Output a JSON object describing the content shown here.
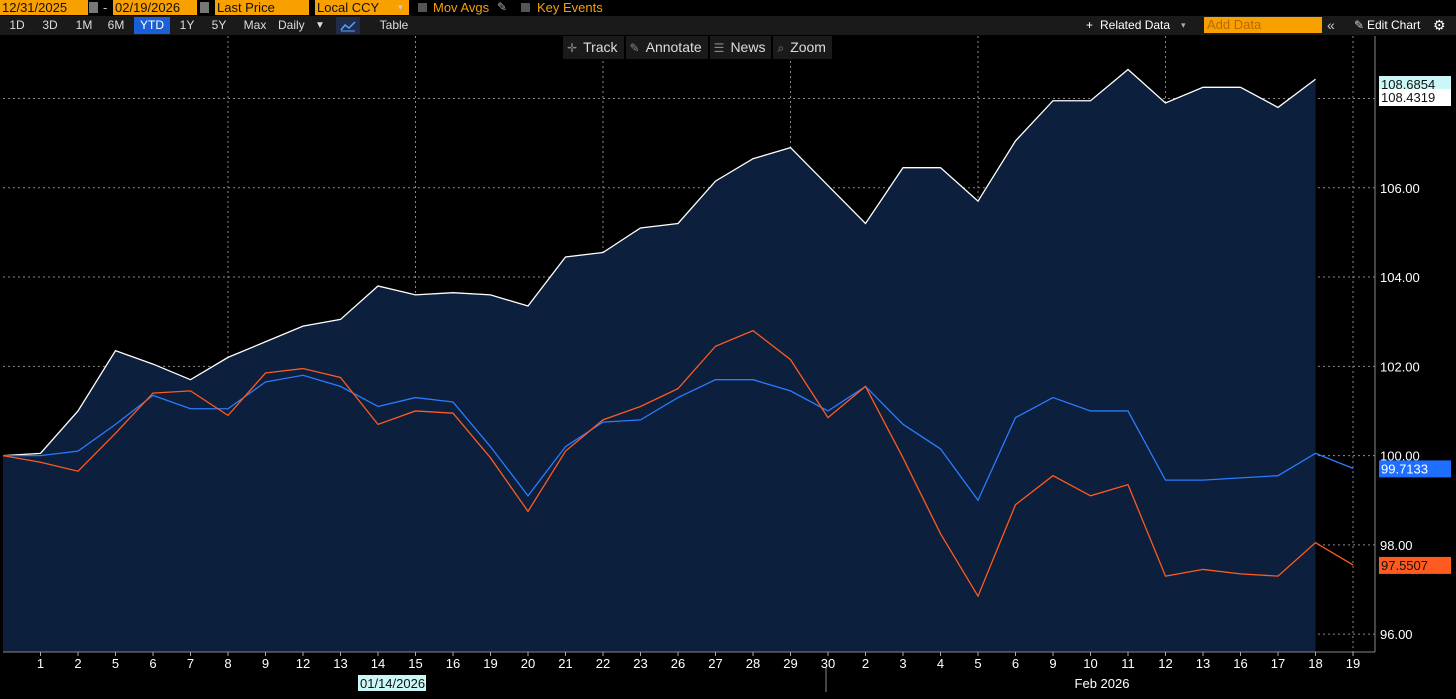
{
  "header": {
    "start_date": "12/31/2025",
    "end_date": "02/19/2026",
    "date_sep": "-",
    "field": "Last Price",
    "currency": "Local CCY",
    "mov_avgs": "Mov Avgs",
    "key_events": "Key Events"
  },
  "toolbar": {
    "periods": [
      "1D",
      "3D",
      "1M",
      "6M",
      "YTD",
      "1Y",
      "5Y",
      "Max"
    ],
    "active_period": "YTD",
    "frequency": "Daily",
    "table": "Table",
    "related_data": "Related Data",
    "add_data_placeholder": "Add Data",
    "edit_chart": "Edit Chart"
  },
  "chart_tools": {
    "track": "Track",
    "annotate": "Annotate",
    "news": "News",
    "zoom": "Zoom"
  },
  "colors": {
    "white_series": "#ffffff",
    "blue_series": "#2a7bff",
    "orange_series": "#ff5a1f",
    "area_fill": "#0c1f3c",
    "accent": "#f7a000"
  },
  "chart_data": {
    "type": "line",
    "x": [
      "1",
      "2",
      "5",
      "6",
      "7",
      "8",
      "9",
      "12",
      "13",
      "14",
      "15",
      "16",
      "19",
      "20",
      "21",
      "22",
      "23",
      "26",
      "27",
      "28",
      "29",
      "30",
      "2",
      "3",
      "4",
      "5",
      "6",
      "9",
      "10",
      "11",
      "12",
      "13",
      "16",
      "17",
      "18",
      "19"
    ],
    "dates": [
      "2026-01-01",
      "2026-01-02",
      "2026-01-05",
      "2026-01-06",
      "2026-01-07",
      "2026-01-08",
      "2026-01-09",
      "2026-01-12",
      "2026-01-13",
      "2026-01-14",
      "2026-01-15",
      "2026-01-16",
      "2026-01-19",
      "2026-01-20",
      "2026-01-21",
      "2026-01-22",
      "2026-01-23",
      "2026-01-26",
      "2026-01-27",
      "2026-01-28",
      "2026-01-29",
      "2026-01-30",
      "2026-02-02",
      "2026-02-03",
      "2026-02-04",
      "2026-02-05",
      "2026-02-06",
      "2026-02-09",
      "2026-02-10",
      "2026-02-11",
      "2026-02-12",
      "2026-02-13",
      "2026-02-16",
      "2026-02-17",
      "2026-02-18",
      "2026-02-19"
    ],
    "series": [
      {
        "values": [
          100.05,
          101.0,
          102.35,
          102.05,
          101.7,
          102.2,
          102.55,
          102.9,
          103.05,
          103.8,
          103.6,
          103.65,
          103.6,
          103.35,
          104.45,
          104.55,
          105.1,
          105.2,
          106.15,
          106.65,
          106.9,
          106.05,
          105.2,
          106.45,
          106.45,
          105.7,
          107.05,
          107.95,
          107.95,
          108.65,
          107.9,
          108.25,
          108.25,
          107.8,
          108.4319,
          null
        ],
        "label": "108.4319",
        "hi_label": "108.6854"
      },
      {
        "values": [
          100.0,
          100.1,
          100.7,
          101.35,
          101.05,
          101.05,
          101.65,
          101.8,
          101.55,
          101.1,
          101.3,
          101.2,
          100.2,
          99.1,
          100.2,
          100.75,
          100.8,
          101.3,
          101.7,
          101.7,
          101.45,
          101.0,
          101.55,
          100.7,
          100.15,
          99.0,
          100.85,
          101.3,
          101.0,
          101.0,
          99.45,
          99.45,
          99.5,
          99.55,
          100.05,
          99.7133
        ],
        "label": "99.7133"
      },
      {
        "values": [
          99.85,
          99.65,
          100.5,
          101.4,
          101.45,
          100.9,
          101.85,
          101.95,
          101.75,
          100.7,
          101.0,
          100.95,
          99.95,
          98.75,
          100.1,
          100.8,
          101.1,
          101.5,
          102.45,
          102.8,
          102.15,
          100.85,
          101.55,
          99.95,
          98.25,
          96.85,
          98.9,
          99.55,
          99.1,
          99.35,
          97.3,
          97.45,
          97.35,
          97.3,
          98.05,
          97.5507
        ],
        "label": "97.5507"
      }
    ],
    "start_value": 100.0,
    "ylim": [
      95.6,
      109.4
    ],
    "yticks": [
      "96.00",
      "98.00",
      "100.00",
      "102.00",
      "104.00",
      "106.00",
      "108.00"
    ],
    "ytick_values": [
      96,
      98,
      100,
      102,
      104,
      106,
      108
    ],
    "x_labels_bottom": [
      "01/14/2026",
      "Feb 2026"
    ],
    "grid": true
  }
}
